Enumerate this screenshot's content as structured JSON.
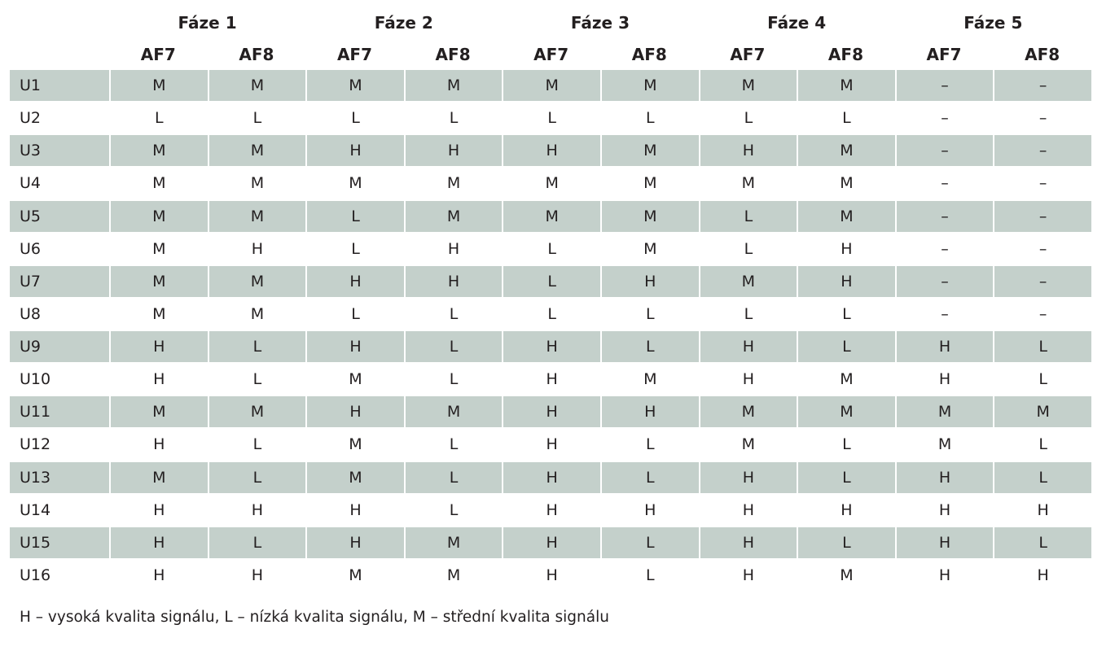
{
  "table": {
    "phases": [
      "Fáze 1",
      "Fáze 2",
      "Fáze 3",
      "Fáze 4",
      "Fáze 5"
    ],
    "channels": [
      "AF7",
      "AF8"
    ],
    "rows": [
      {
        "label": "U1",
        "values": [
          "M",
          "M",
          "M",
          "M",
          "M",
          "M",
          "M",
          "M",
          "–",
          "–"
        ]
      },
      {
        "label": "U2",
        "values": [
          "L",
          "L",
          "L",
          "L",
          "L",
          "L",
          "L",
          "L",
          "–",
          "–"
        ]
      },
      {
        "label": "U3",
        "values": [
          "M",
          "M",
          "H",
          "H",
          "H",
          "M",
          "H",
          "M",
          "–",
          "–"
        ]
      },
      {
        "label": "U4",
        "values": [
          "M",
          "M",
          "M",
          "M",
          "M",
          "M",
          "M",
          "M",
          "–",
          "–"
        ]
      },
      {
        "label": "U5",
        "values": [
          "M",
          "M",
          "L",
          "M",
          "M",
          "M",
          "L",
          "M",
          "–",
          "–"
        ]
      },
      {
        "label": "U6",
        "values": [
          "M",
          "H",
          "L",
          "H",
          "L",
          "M",
          "L",
          "H",
          "–",
          "–"
        ]
      },
      {
        "label": "U7",
        "values": [
          "M",
          "M",
          "H",
          "H",
          "L",
          "H",
          "M",
          "H",
          "–",
          "–"
        ]
      },
      {
        "label": "U8",
        "values": [
          "M",
          "M",
          "L",
          "L",
          "L",
          "L",
          "L",
          "L",
          "–",
          "–"
        ]
      },
      {
        "label": "U9",
        "values": [
          "H",
          "L",
          "H",
          "L",
          "H",
          "L",
          "H",
          "L",
          "H",
          "L"
        ]
      },
      {
        "label": "U10",
        "values": [
          "H",
          "L",
          "M",
          "L",
          "H",
          "M",
          "H",
          "M",
          "H",
          "L"
        ]
      },
      {
        "label": "U11",
        "values": [
          "M",
          "M",
          "H",
          "M",
          "H",
          "H",
          "M",
          "M",
          "M",
          "M"
        ]
      },
      {
        "label": "U12",
        "values": [
          "H",
          "L",
          "M",
          "L",
          "H",
          "L",
          "M",
          "L",
          "M",
          "L"
        ]
      },
      {
        "label": "U13",
        "values": [
          "M",
          "L",
          "M",
          "L",
          "H",
          "L",
          "H",
          "L",
          "H",
          "L"
        ]
      },
      {
        "label": "U14",
        "values": [
          "H",
          "H",
          "H",
          "L",
          "H",
          "H",
          "H",
          "H",
          "H",
          "H"
        ]
      },
      {
        "label": "U15",
        "values": [
          "H",
          "L",
          "H",
          "M",
          "H",
          "L",
          "H",
          "L",
          "H",
          "L"
        ]
      },
      {
        "label": "U16",
        "values": [
          "H",
          "H",
          "M",
          "M",
          "H",
          "L",
          "H",
          "M",
          "H",
          "H"
        ]
      }
    ]
  },
  "footnote": "H – vysoká kvalita signálu, L – nízká kvalita signálu, M – střední kvalita signálu",
  "colors": {
    "row_shade": "#c4d0cb",
    "text": "#231f20",
    "background": "#ffffff"
  }
}
